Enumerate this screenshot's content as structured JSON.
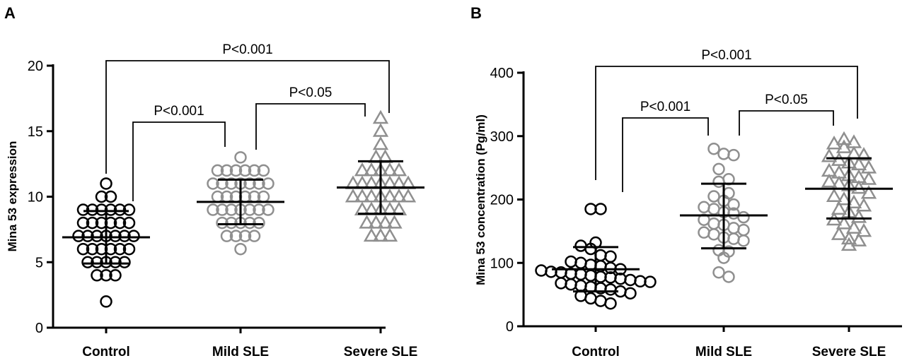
{
  "colors": {
    "control": "#000000",
    "mild": "#8f8f8f",
    "severe": "#8f8f8f",
    "axis": "#000000"
  },
  "chart_data": [
    {
      "panel": "A",
      "type": "scatter",
      "categories": [
        "Control",
        "Mild SLE",
        "Severe SLE"
      ],
      "ylabel": "Mina 53 expression",
      "ylim": [
        0,
        20
      ],
      "yticks": [
        0,
        5,
        10,
        15,
        20
      ],
      "markers": [
        "circle",
        "circle",
        "triangle"
      ],
      "groups": [
        {
          "name": "Control",
          "values": [
            11,
            10,
            10,
            9,
            9,
            9,
            9,
            9,
            9,
            8,
            8,
            8,
            8,
            8,
            8,
            7,
            7,
            7,
            7,
            7,
            7,
            7,
            6,
            6,
            6,
            6,
            6,
            6,
            5,
            5,
            5,
            5,
            5,
            4,
            4,
            4,
            2
          ],
          "mean": 6.9,
          "sd_low": 4.9,
          "sd_high": 8.9
        },
        {
          "name": "Mild SLE",
          "values": [
            13,
            12,
            12,
            12,
            12,
            12,
            12,
            11,
            11,
            11,
            11,
            11,
            11,
            11,
            10,
            10,
            10,
            10,
            10,
            10,
            9,
            9,
            9,
            9,
            9,
            9,
            9,
            8,
            8,
            8,
            8,
            8,
            7,
            7,
            7,
            7,
            6
          ],
          "mean": 9.6,
          "sd_low": 7.9,
          "sd_high": 11.3
        },
        {
          "name": "Severe SLE",
          "values": [
            16,
            15,
            14,
            13,
            13,
            12,
            12,
            12,
            12,
            12,
            11,
            11,
            11,
            11,
            11,
            11,
            11,
            10,
            10,
            10,
            10,
            10,
            10,
            10,
            9,
            9,
            9,
            9,
            9,
            8,
            8,
            8,
            8,
            7,
            7,
            7
          ],
          "mean": 10.7,
          "sd_low": 8.7,
          "sd_high": 12.7
        }
      ],
      "comparisons": [
        {
          "from": "Control",
          "to": "Mild SLE",
          "label": "P<0.001"
        },
        {
          "from": "Mild SLE",
          "to": "Severe SLE",
          "label": "P<0.05"
        },
        {
          "from": "Control",
          "to": "Severe SLE",
          "label": "P<0.001"
        }
      ]
    },
    {
      "panel": "B",
      "type": "scatter",
      "categories": [
        "Control",
        "Mild SLE",
        "Severe SLE"
      ],
      "ylabel": "Mina 53 concentration (Pg/ml)",
      "ylim": [
        0,
        400
      ],
      "yticks": [
        0,
        100,
        200,
        300,
        400
      ],
      "markers": [
        "circle",
        "circle",
        "triangle"
      ],
      "groups": [
        {
          "name": "Control",
          "values": [
            185,
            185,
            132,
            127,
            122,
            112,
            110,
            102,
            100,
            97,
            95,
            92,
            90,
            88,
            86,
            85,
            83,
            82,
            80,
            78,
            77,
            75,
            73,
            71,
            70,
            68,
            66,
            64,
            62,
            60,
            58,
            55,
            52,
            48,
            44,
            40,
            36
          ],
          "mean": 90,
          "sd_low": 55,
          "sd_high": 125
        },
        {
          "name": "Mild SLE",
          "values": [
            280,
            272,
            270,
            248,
            232,
            228,
            210,
            205,
            198,
            192,
            188,
            185,
            180,
            178,
            172,
            168,
            162,
            160,
            155,
            152,
            148,
            145,
            140,
            138,
            135,
            120,
            118,
            108,
            85,
            78
          ],
          "mean": 175,
          "sd_low": 123,
          "sd_high": 225
        },
        {
          "name": "Severe SLE",
          "values": [
            295,
            290,
            288,
            282,
            272,
            270,
            268,
            262,
            258,
            255,
            250,
            245,
            242,
            238,
            235,
            232,
            228,
            225,
            222,
            218,
            210,
            205,
            200,
            195,
            190,
            185,
            180,
            172,
            168,
            162,
            155,
            150,
            145,
            138,
            135,
            128
          ],
          "mean": 217,
          "sd_low": 170,
          "sd_high": 265
        }
      ],
      "comparisons": [
        {
          "from": "Control",
          "to": "Mild SLE",
          "label": "P<0.001"
        },
        {
          "from": "Mild SLE",
          "to": "Severe SLE",
          "label": "P<0.05"
        },
        {
          "from": "Control",
          "to": "Severe SLE",
          "label": "P<0.001"
        }
      ]
    }
  ]
}
